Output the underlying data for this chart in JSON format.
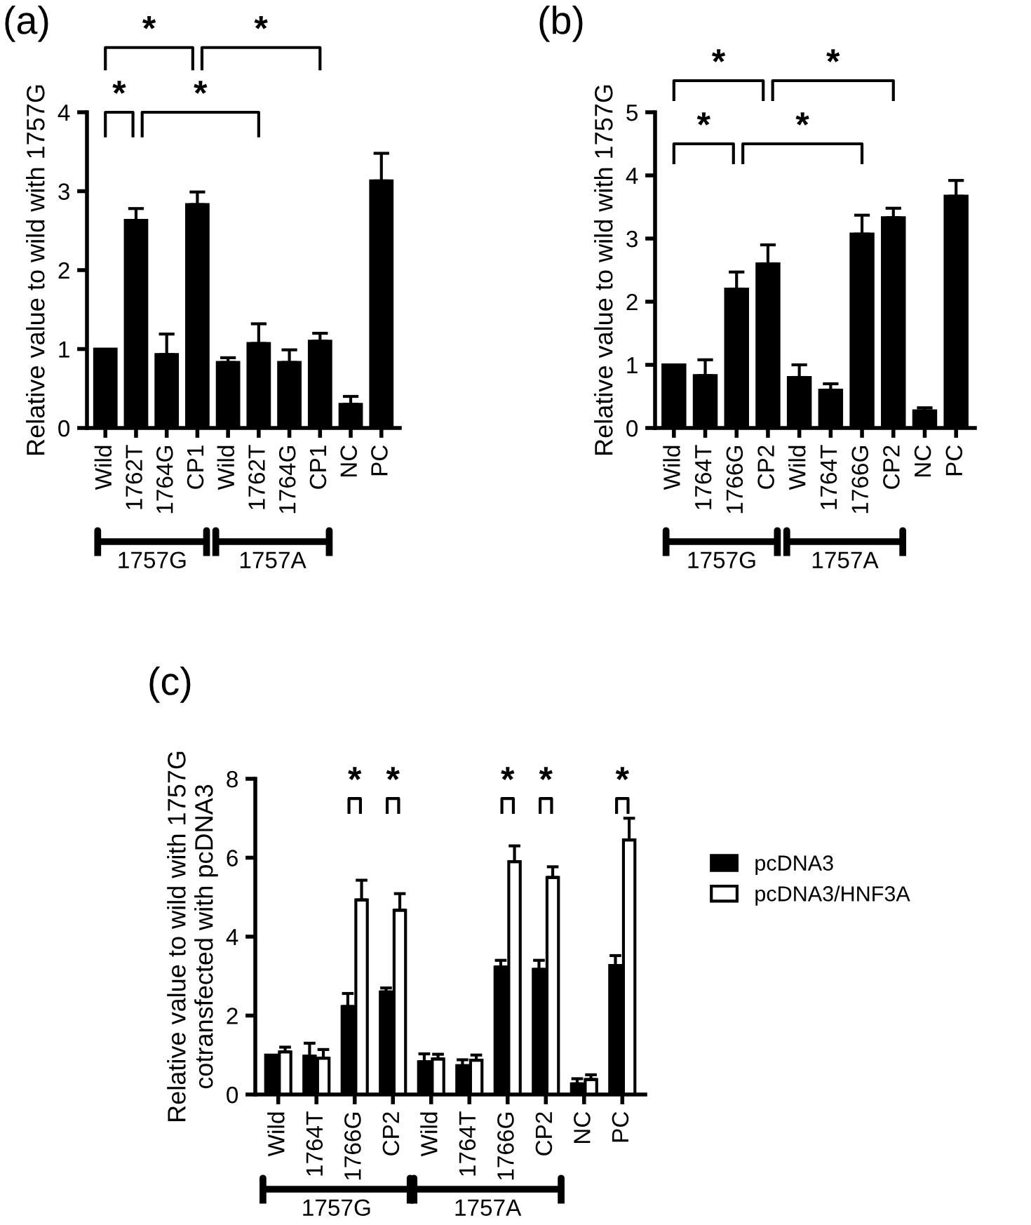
{
  "chart_data": [
    {
      "type": "bar",
      "title": "(a)",
      "ylabel": "Relative value to wild with 1757G",
      "categories": [
        "Wild",
        "1762T",
        "1764G",
        "CP1",
        "Wild",
        "1762T",
        "1764G",
        "CP1",
        "NC",
        "PC"
      ],
      "series": [
        {
          "color": "#000000",
          "values": [
            1.0,
            2.63,
            0.93,
            2.83,
            0.83,
            1.07,
            0.83,
            1.1,
            0.3,
            3.13
          ],
          "errors": [
            null,
            0.15,
            0.26,
            0.16,
            0.06,
            0.25,
            0.16,
            0.1,
            0.1,
            0.35
          ]
        }
      ],
      "ylim": [
        0,
        4
      ],
      "yticks": [
        0,
        1,
        2,
        3,
        4
      ],
      "grid": false,
      "legend": false,
      "annotations": [
        "*",
        "*",
        "*",
        "*",
        "1757G",
        "1757A"
      ]
    },
    {
      "type": "bar",
      "title": "(b)",
      "ylabel": "Relative value to wild with 1757G",
      "categories": [
        "Wild",
        "1764T",
        "1766G",
        "CP2",
        "Wild",
        "1764T",
        "1766G",
        "CP2",
        "NC",
        "PC"
      ],
      "series": [
        {
          "color": "#000000",
          "values": [
            1.0,
            0.83,
            2.2,
            2.6,
            0.8,
            0.6,
            3.07,
            3.33,
            0.27,
            3.67
          ],
          "errors": [
            null,
            0.25,
            0.27,
            0.3,
            0.2,
            0.1,
            0.3,
            0.15,
            0.05,
            0.25
          ]
        }
      ],
      "ylim": [
        0,
        5
      ],
      "yticks": [
        0,
        1,
        2,
        3,
        4,
        5
      ],
      "grid": false,
      "legend": false,
      "annotations": [
        "*",
        "*",
        "*",
        "*",
        "1757G",
        "1757A"
      ]
    },
    {
      "type": "bar",
      "title": "(c)",
      "ylabel": "Relative value to wild with 1757G\ncotransfected with pcDNA3",
      "categories": [
        "Wild",
        "1764T",
        "1766G",
        "CP2",
        "Wild",
        "1764T",
        "1766G",
        "CP2",
        "NC",
        "PC"
      ],
      "series": [
        {
          "name": "pcDNA3",
          "color": "#000000",
          "values": [
            1.0,
            0.97,
            2.23,
            2.6,
            0.83,
            0.73,
            3.23,
            3.17,
            0.27,
            3.27
          ],
          "errors": [
            null,
            0.33,
            0.33,
            0.1,
            0.2,
            0.15,
            0.17,
            0.23,
            0.13,
            0.25
          ]
        },
        {
          "name": "pcDNA3/HNF3A",
          "color": "#ffffff",
          "values": [
            1.08,
            0.92,
            4.93,
            4.67,
            0.9,
            0.87,
            5.9,
            5.5,
            0.38,
            6.45
          ],
          "errors": [
            0.12,
            0.22,
            0.5,
            0.42,
            0.12,
            0.13,
            0.4,
            0.27,
            0.12,
            0.55
          ]
        }
      ],
      "ylim": [
        0,
        8
      ],
      "yticks": [
        0,
        2,
        4,
        6,
        8
      ],
      "grid": false,
      "legend": "right",
      "annotations": [
        "*",
        "*",
        "*",
        "*",
        "*",
        "1757G",
        "1757A"
      ]
    }
  ]
}
